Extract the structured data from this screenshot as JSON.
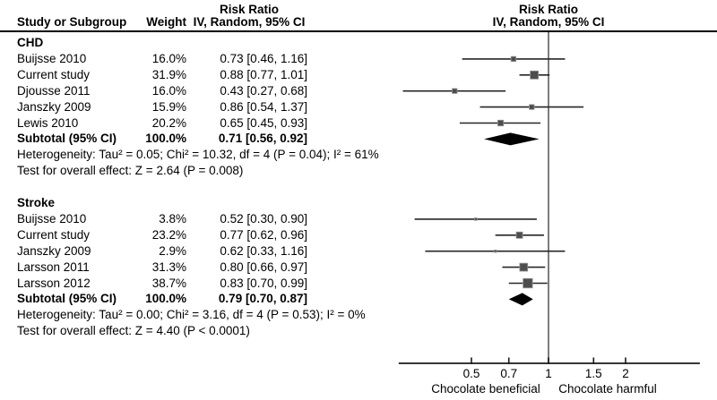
{
  "columns": {
    "study": "Study or Subgroup",
    "weight": "Weight"
  },
  "colors": {
    "square": "#4d4d4d",
    "square_border": "#979797",
    "ci_line": "#262626",
    "diamond": "#000000",
    "null_line": "#7d7d7d",
    "axis": "#1a1a1a",
    "text": "#000000"
  },
  "chart_data": {
    "type": "forest",
    "effect_measure": "Risk Ratio",
    "model": "IV, Random, 95% CI",
    "x_scale": "log",
    "x_ticks": [
      0.5,
      0.7,
      1,
      1.5,
      2
    ],
    "x_tick_labels": [
      "0.5",
      "0.7",
      "1",
      "1.5",
      "2"
    ],
    "x_axis_range": [
      0.26,
      3.9
    ],
    "null_value": 1,
    "direction_labels": {
      "left": "Chocolate beneficial",
      "right": "Chocolate harmful"
    },
    "groups": [
      {
        "name": "CHD",
        "studies": [
          {
            "study": "Buijsse 2010",
            "weight_pct": 16.0,
            "rr": 0.73,
            "ci_low": 0.46,
            "ci_high": 1.16
          },
          {
            "study": "Current study",
            "weight_pct": 31.9,
            "rr": 0.88,
            "ci_low": 0.77,
            "ci_high": 1.01
          },
          {
            "study": "Djousse 2011",
            "weight_pct": 16.0,
            "rr": 0.43,
            "ci_low": 0.27,
            "ci_high": 0.68
          },
          {
            "study": "Janszky 2009",
            "weight_pct": 15.9,
            "rr": 0.86,
            "ci_low": 0.54,
            "ci_high": 1.37
          },
          {
            "study": "Lewis 2010",
            "weight_pct": 20.2,
            "rr": 0.65,
            "ci_low": 0.45,
            "ci_high": 0.93
          }
        ],
        "subtotal": {
          "label": "Subtotal (95% CI)",
          "weight_pct": 100.0,
          "rr": 0.71,
          "ci_low": 0.56,
          "ci_high": 0.92
        },
        "heterogeneity": "Heterogeneity: Tau² = 0.05; Chi² = 10.32, df = 4 (P = 0.04); I² = 61%",
        "overall_effect": "Test for overall effect: Z = 2.64 (P = 0.008)"
      },
      {
        "name": "Stroke",
        "studies": [
          {
            "study": "Buijsse 2010",
            "weight_pct": 3.8,
            "rr": 0.52,
            "ci_low": 0.3,
            "ci_high": 0.9
          },
          {
            "study": "Current study",
            "weight_pct": 23.2,
            "rr": 0.77,
            "ci_low": 0.62,
            "ci_high": 0.96
          },
          {
            "study": "Janszky 2009",
            "weight_pct": 2.9,
            "rr": 0.62,
            "ci_low": 0.33,
            "ci_high": 1.16
          },
          {
            "study": "Larsson 2011",
            "weight_pct": 31.3,
            "rr": 0.8,
            "ci_low": 0.66,
            "ci_high": 0.97
          },
          {
            "study": "Larsson 2012",
            "weight_pct": 38.7,
            "rr": 0.83,
            "ci_low": 0.7,
            "ci_high": 0.99
          }
        ],
        "subtotal": {
          "label": "Subtotal (95% CI)",
          "weight_pct": 100.0,
          "rr": 0.79,
          "ci_low": 0.7,
          "ci_high": 0.87
        },
        "heterogeneity": "Heterogeneity: Tau² = 0.00; Chi² = 3.16, df = 4 (P = 0.53); I² = 0%",
        "overall_effect": "Test for overall effect: Z = 4.40 (P < 0.0001)"
      }
    ]
  }
}
